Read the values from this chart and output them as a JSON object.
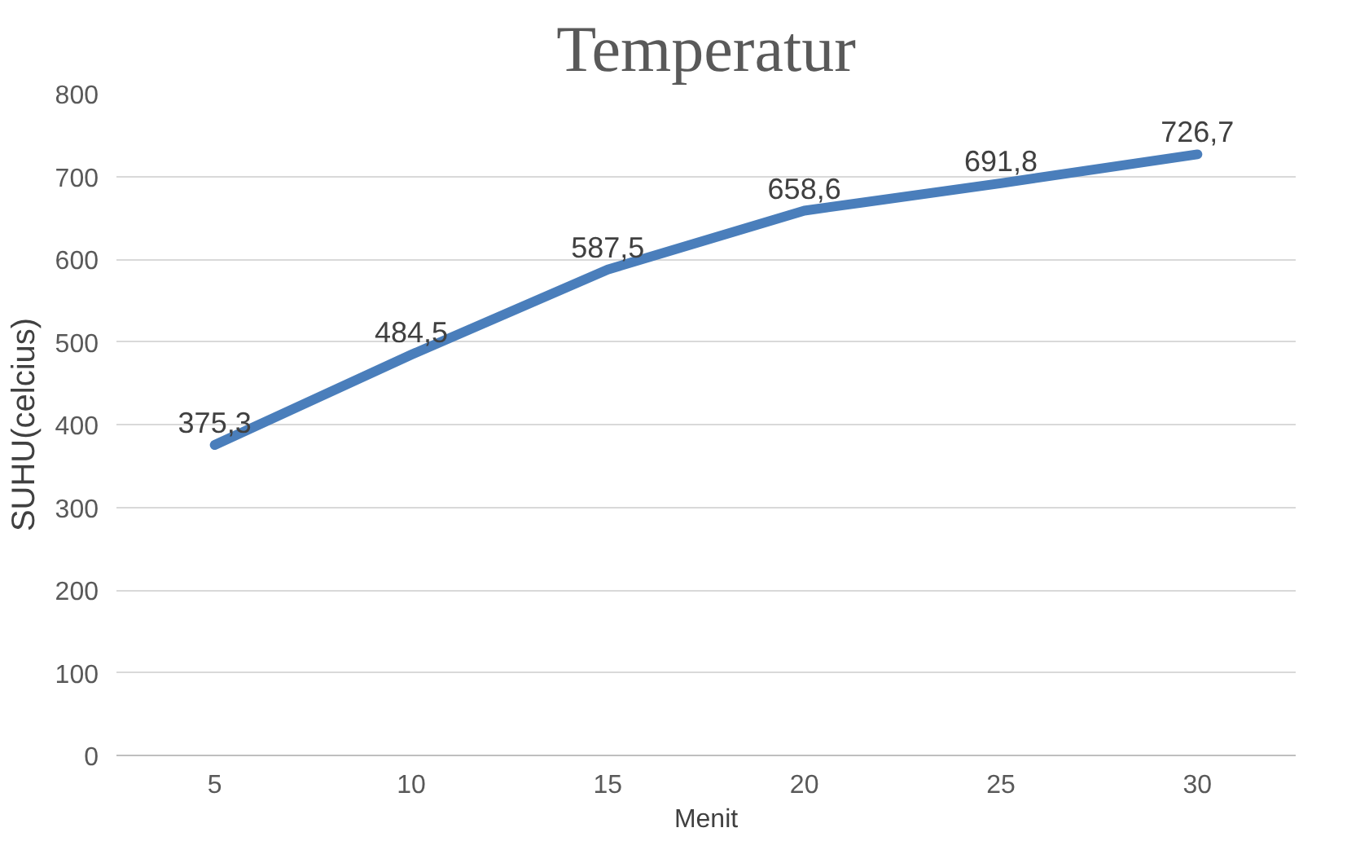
{
  "chart_data": {
    "type": "line",
    "title": "Temperatur",
    "xlabel": "Menit",
    "ylabel": "SUHU(celcius)",
    "categories": [
      "5",
      "10",
      "15",
      "20",
      "25",
      "30"
    ],
    "series": [
      {
        "color": "#4a7ebb",
        "values": [
          375.3,
          484.5,
          587.5,
          658.6,
          691.8,
          726.7
        ],
        "value_labels": [
          "375,3",
          "484,5",
          "587,5",
          "658,6",
          "691,8",
          "726,7"
        ]
      }
    ],
    "ylim": [
      0,
      800
    ],
    "yticks": [
      0,
      100,
      200,
      300,
      400,
      500,
      600,
      700,
      800
    ],
    "grid": "y",
    "marker": "none",
    "line_style": "solid"
  }
}
